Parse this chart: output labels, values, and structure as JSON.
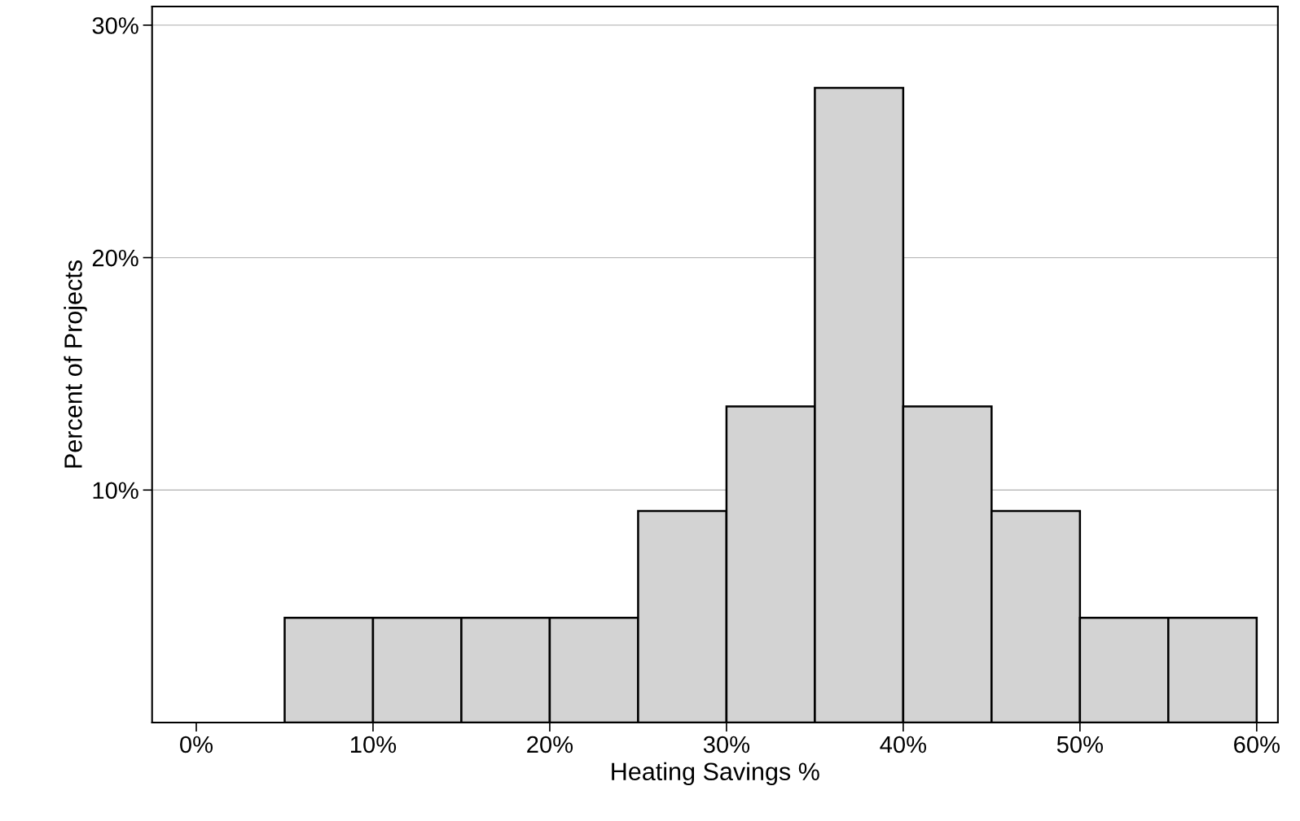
{
  "chart_data": {
    "type": "histogram",
    "xlabel": "Heating Savings %",
    "ylabel": "Percent of Projects",
    "bins": [
      5,
      10,
      15,
      20,
      25,
      30,
      35,
      40,
      45,
      50,
      55,
      60
    ],
    "values": [
      4.5,
      4.5,
      4.5,
      4.5,
      9.1,
      13.6,
      27.3,
      13.6,
      9.1,
      4.5,
      4.5
    ],
    "color": "#d3d3d3",
    "xlim": [
      -2.5,
      61.2
    ],
    "ylim": [
      0,
      30.8
    ],
    "xticks": [
      {
        "value": 0,
        "label": "0%"
      },
      {
        "value": 10,
        "label": "10%"
      },
      {
        "value": 20,
        "label": "20%"
      },
      {
        "value": 30,
        "label": "30%"
      },
      {
        "value": 40,
        "label": "40%"
      },
      {
        "value": 50,
        "label": "50%"
      },
      {
        "value": 60,
        "label": "60%"
      }
    ],
    "yticks": [
      {
        "value": 10,
        "label": "10%"
      },
      {
        "value": 20,
        "label": "20%"
      },
      {
        "value": 30,
        "label": "30%"
      }
    ],
    "grid": "y"
  }
}
